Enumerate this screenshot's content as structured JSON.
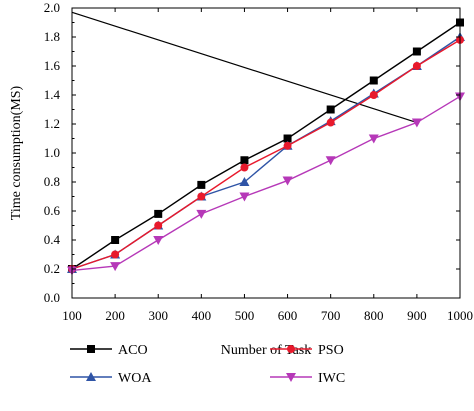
{
  "chart_data": {
    "type": "line",
    "xlabel": "Number of Task",
    "ylabel": "Time consumption(MS)",
    "x": [
      100,
      200,
      300,
      400,
      500,
      600,
      700,
      800,
      900,
      1000
    ],
    "xlim": [
      100,
      1000
    ],
    "ylim": [
      0.0,
      2.0
    ],
    "x_ticks": [
      "100",
      "200",
      "300",
      "400",
      "500",
      "600",
      "700",
      "800",
      "900",
      "1000"
    ],
    "y_ticks": [
      "0.0",
      "0.2",
      "0.4",
      "0.6",
      "0.8",
      "1.0",
      "1.2",
      "1.4",
      "1.6",
      "1.8",
      "2.0"
    ],
    "legend_position": "bottom",
    "series": [
      {
        "name": "ACO",
        "color": "#000000",
        "marker": "square",
        "values": [
          0.2,
          0.4,
          0.58,
          0.78,
          0.95,
          1.1,
          1.3,
          1.5,
          1.7,
          1.9
        ]
      },
      {
        "name": "WOA",
        "color": "#2f54a6",
        "marker": "triangle-up",
        "values": [
          0.2,
          0.3,
          0.5,
          0.7,
          0.8,
          1.05,
          1.22,
          1.41,
          1.6,
          1.8
        ]
      },
      {
        "name": "PSO",
        "color": "#e8192c",
        "marker": "circle",
        "values": [
          0.2,
          0.3,
          0.5,
          0.7,
          0.9,
          1.05,
          1.21,
          1.4,
          1.6,
          1.78
        ]
      },
      {
        "name": "IWC",
        "color": "#b638b8",
        "marker": "triangle-down",
        "values": [
          0.19,
          0.22,
          0.4,
          0.58,
          0.7,
          0.81,
          0.95,
          1.1,
          1.21,
          1.39
        ]
      }
    ],
    "annotation_line": {
      "from": [
        100,
        1.97
      ],
      "to": [
        900,
        1.21
      ],
      "color": "#000000"
    }
  }
}
